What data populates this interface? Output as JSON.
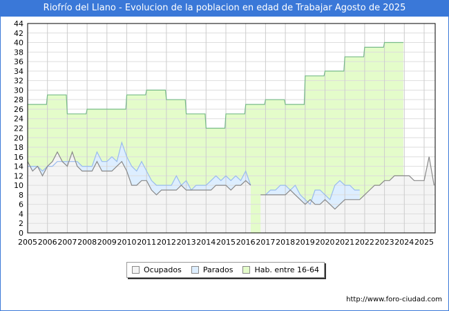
{
  "chart_data": {
    "type": "area",
    "title": "Riofrío del Llano - Evolucion de la poblacion en edad de Trabajar Agosto de 2025",
    "xlabel": "",
    "ylabel": "",
    "ylim": [
      0,
      44
    ],
    "yticks": [
      0,
      2,
      4,
      6,
      8,
      10,
      12,
      14,
      16,
      18,
      20,
      22,
      24,
      26,
      28,
      30,
      32,
      34,
      36,
      38,
      40,
      42,
      44
    ],
    "xticks": [
      "2005",
      "2006",
      "2007",
      "2008",
      "2009",
      "2010",
      "2011",
      "2012",
      "2013",
      "2014",
      "2015",
      "2016",
      "2017",
      "2018",
      "2019",
      "2020",
      "2021",
      "2022",
      "2023",
      "2024",
      "2025"
    ],
    "grid": true,
    "legend_position": "bottom",
    "series": [
      {
        "name": "Hab. entre 16-64",
        "color": "#e4fcca",
        "line": "#77bb88",
        "x_start": 2005,
        "step": 1,
        "values": [
          27,
          29,
          25,
          26,
          26,
          29,
          30,
          28,
          25,
          22,
          25,
          27,
          28,
          27,
          33,
          34,
          37,
          39,
          40
        ]
      },
      {
        "name": "Parados",
        "color": "#ddeeff",
        "line": "#99bbee",
        "x_start": 2005,
        "step": 0.25,
        "values": [
          14,
          14,
          14,
          13,
          14,
          14,
          15,
          15,
          15,
          15,
          15,
          14,
          14,
          14,
          17,
          15,
          15,
          16,
          15,
          19,
          16,
          14,
          13,
          15,
          13,
          11,
          10,
          10,
          10,
          10,
          12,
          10,
          11,
          9,
          10,
          10,
          10,
          11,
          12,
          11,
          12,
          11,
          12,
          11,
          13,
          10,
          null,
          null,
          8,
          9,
          9,
          10,
          10,
          9,
          10,
          8,
          7,
          6,
          9,
          9,
          8,
          7,
          10,
          11,
          10,
          10,
          9,
          9
        ]
      },
      {
        "name": "Ocupados",
        "color": "#f4f4f4",
        "line": "#888888",
        "x_start": 2005,
        "step": 0.25,
        "values": [
          15,
          13,
          14,
          12,
          14,
          15,
          17,
          15,
          14,
          17,
          14,
          13,
          13,
          13,
          15,
          13,
          13,
          13,
          14,
          15,
          13,
          10,
          10,
          11,
          11,
          9,
          8,
          9,
          9,
          9,
          9,
          10,
          9,
          9,
          9,
          9,
          9,
          9,
          10,
          10,
          10,
          9,
          10,
          10,
          11,
          10,
          null,
          8,
          8,
          8,
          8,
          8,
          8,
          9,
          8,
          7,
          6,
          7,
          6,
          6,
          7,
          6,
          5,
          6,
          7,
          7,
          7,
          7,
          8,
          9,
          10,
          10,
          11,
          11,
          12,
          12,
          12,
          12,
          11,
          11,
          11,
          16,
          10
        ]
      }
    ]
  },
  "legend": {
    "items": [
      "Ocupados",
      "Parados",
      "Hab. entre 16-64"
    ]
  },
  "footer": {
    "url": "http://www.foro-ciudad.com"
  }
}
